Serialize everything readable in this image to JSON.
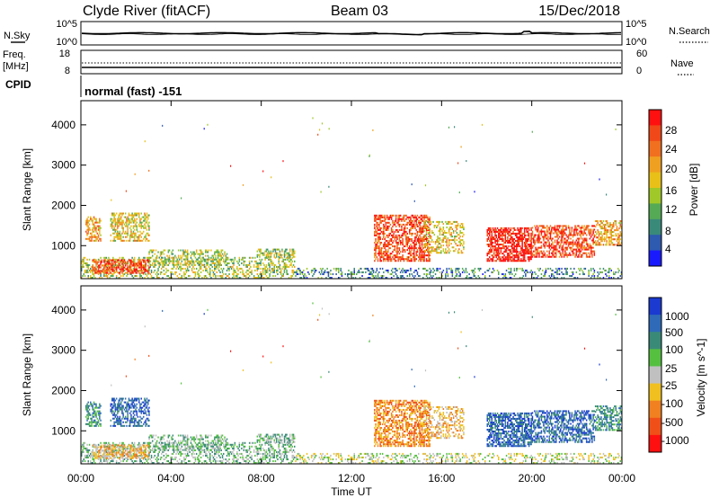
{
  "header": {
    "station": "Clyde River (fitACF)",
    "beam": "Beam 03",
    "date": "15/Dec/2018"
  },
  "noise_panel": {
    "left_label": "N.Sky",
    "right_label": "N.Search",
    "left_ticks": [
      "10^5",
      "10^0"
    ],
    "right_ticks": [
      "10^5",
      "10^0"
    ]
  },
  "freq_panel": {
    "left_label_line1": "Freq.",
    "left_label_line2": "[MHz]",
    "right_label": "Nave",
    "left_ticks": [
      "18",
      "8"
    ],
    "right_ticks": [
      "60",
      "0"
    ]
  },
  "cpid": {
    "label": "CPID",
    "value": "normal (fast) -151"
  },
  "time_axis": {
    "label": "Time UT",
    "ticks": [
      "00:00",
      "04:00",
      "08:00",
      "12:00",
      "16:00",
      "20:00",
      "00:00"
    ]
  },
  "chart_data": [
    {
      "type": "heatmap",
      "name": "power",
      "ylabel": "Slant Range [km]",
      "yticks": [
        "1000",
        "2000",
        "3000",
        "4000"
      ],
      "ylim": [
        180,
        4600
      ],
      "xlim_hours": [
        0,
        24
      ],
      "colorbar_label": "Power [dB]",
      "colorbar_ticks": [
        "4",
        "8",
        "12",
        "16",
        "20",
        "24",
        "28"
      ],
      "colorbar_range": [
        0,
        32
      ],
      "colors": [
        "#1a1aff",
        "#2e5ab0",
        "#3a8a7a",
        "#55aa55",
        "#a0c828",
        "#e8c018",
        "#f0a020",
        "#f07020",
        "#f04818",
        "#ff1010"
      ]
    },
    {
      "type": "heatmap",
      "name": "velocity",
      "ylabel": "Slant Range [km]",
      "yticks": [
        "1000",
        "2000",
        "3000",
        "4000"
      ],
      "ylim": [
        180,
        4600
      ],
      "xlim_hours": [
        0,
        24
      ],
      "colorbar_label": "Velocity  [m s^-1]",
      "colorbar_ticks": [
        "1000",
        "500",
        "100",
        "25",
        "-25",
        "-100",
        "-500",
        "-1000"
      ],
      "colors": [
        "#1a3ad0",
        "#2e6ab8",
        "#3a8a78",
        "#55c040",
        "#c0c0c0",
        "#f0c020",
        "#f08020",
        "#f05018",
        "#ff1010"
      ]
    }
  ]
}
